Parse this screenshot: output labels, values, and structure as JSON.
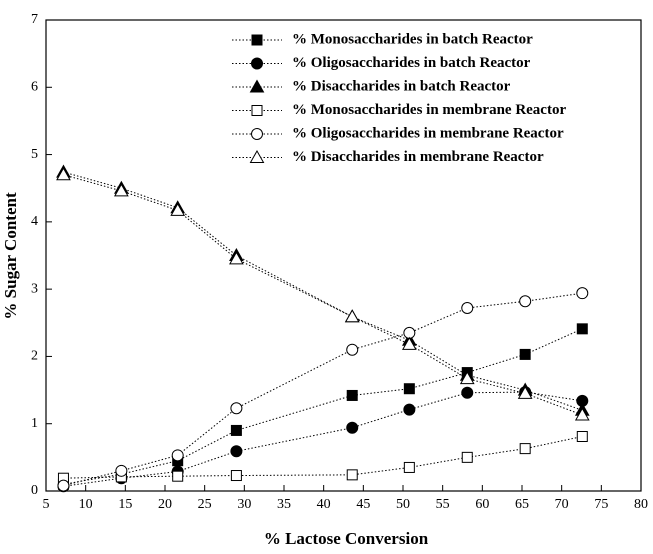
{
  "chart_data": {
    "type": "line",
    "x_label": "% Lactose Conversion",
    "y_label": "% Sugar Content",
    "x": [
      7.2,
      14.5,
      21.6,
      29,
      43.6,
      50.8,
      58.1,
      65.4,
      72.6
    ],
    "xlim": [
      5,
      80
    ],
    "xticks": [
      5,
      10,
      15,
      20,
      25,
      30,
      35,
      40,
      45,
      50,
      55,
      60,
      65,
      70,
      75,
      80
    ],
    "ylim": [
      0,
      7
    ],
    "yticks": [
      0,
      1,
      2,
      3,
      4,
      5,
      6,
      7
    ],
    "series": [
      {
        "name": "% Monosaccharides in batch Reactor",
        "color": "#000000",
        "marker": "square",
        "filled": true,
        "values": [
          0.1,
          0.25,
          0.45,
          0.9,
          1.42,
          1.52,
          1.76,
          2.03,
          2.41
        ]
      },
      {
        "name": "% Oligosaccharides in batch Reactor",
        "color": "#000000",
        "marker": "circle",
        "filled": true,
        "values": [
          0.07,
          0.19,
          0.29,
          0.59,
          0.94,
          1.21,
          1.46,
          1.47,
          1.34
        ]
      },
      {
        "name": "% Disaccharides in batch Reactor",
        "color": "#000000",
        "marker": "triangle",
        "filled": true,
        "values": [
          4.74,
          4.5,
          4.21,
          3.5,
          2.59,
          2.24,
          1.72,
          1.5,
          1.2
        ]
      },
      {
        "name": "% Monosaccharides in membrane Reactor",
        "color": "#000000",
        "marker": "square",
        "filled": false,
        "values": [
          0.19,
          0.21,
          0.22,
          0.23,
          0.24,
          0.35,
          0.5,
          0.63,
          0.81
        ]
      },
      {
        "name": "% Oligosaccharides in membrane Reactor",
        "color": "#000000",
        "marker": "circle",
        "filled": false,
        "values": [
          0.08,
          0.3,
          0.53,
          1.23,
          2.1,
          2.35,
          2.72,
          2.82,
          2.94
        ]
      },
      {
        "name": "% Disaccharides in membrane Reactor",
        "color": "#000000",
        "marker": "triangle",
        "filled": false,
        "values": [
          4.7,
          4.46,
          4.17,
          3.45,
          2.59,
          2.18,
          1.67,
          1.45,
          1.13
        ]
      }
    ]
  }
}
